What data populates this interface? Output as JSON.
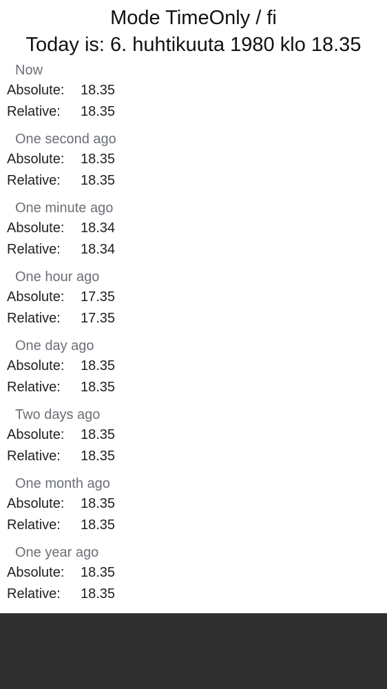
{
  "header": {
    "title": "Mode TimeOnly / fi",
    "today": "Today is: 6. huhtikuuta 1980 klo 18.35"
  },
  "labels": {
    "absolute": "Absolute:",
    "relative": "Relative:"
  },
  "sections": [
    {
      "title": "Now",
      "absolute": "18.35",
      "relative": "18.35"
    },
    {
      "title": "One second ago",
      "absolute": "18.35",
      "relative": "18.35"
    },
    {
      "title": "One minute ago",
      "absolute": "18.34",
      "relative": "18.34"
    },
    {
      "title": "One hour ago",
      "absolute": "17.35",
      "relative": "17.35"
    },
    {
      "title": "One day ago",
      "absolute": "18.35",
      "relative": "18.35"
    },
    {
      "title": "Two days ago",
      "absolute": "18.35",
      "relative": "18.35"
    },
    {
      "title": "One month ago",
      "absolute": "18.35",
      "relative": "18.35"
    },
    {
      "title": "One year ago",
      "absolute": "18.35",
      "relative": "18.35"
    }
  ]
}
